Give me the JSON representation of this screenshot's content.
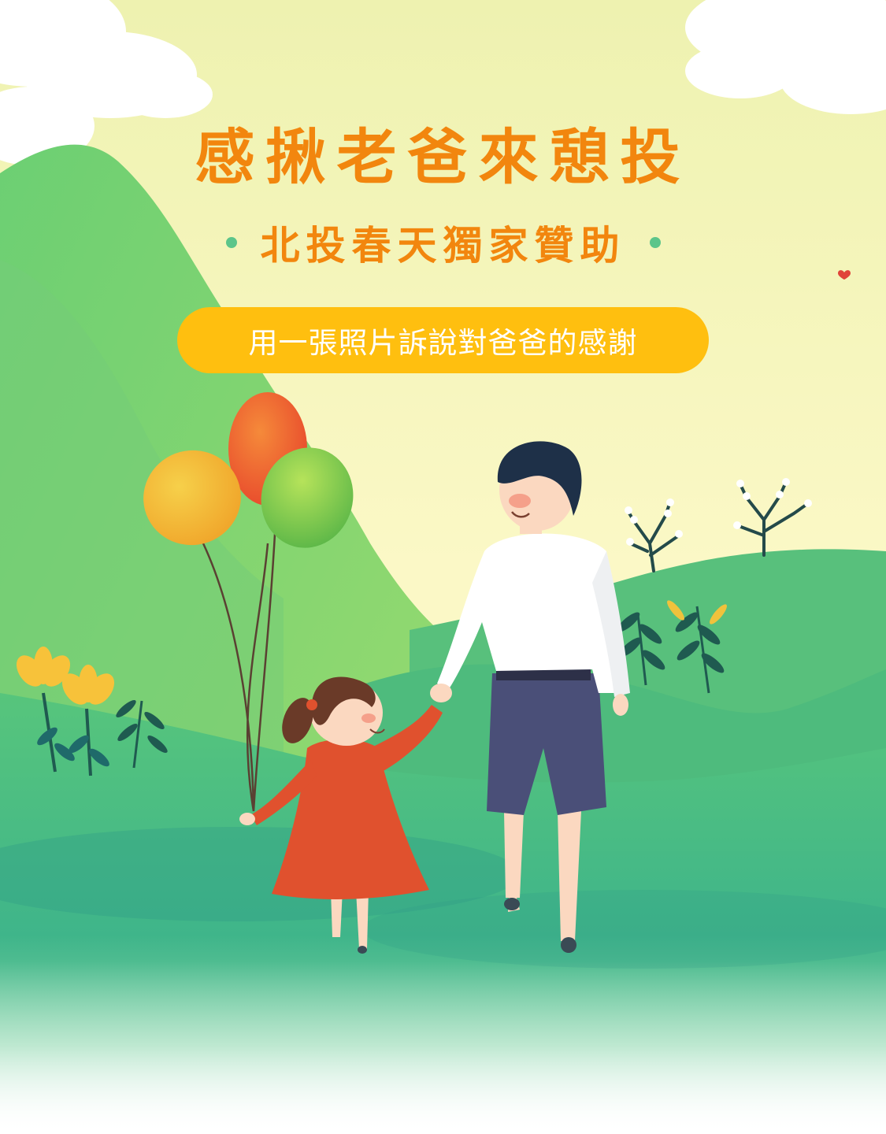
{
  "poster": {
    "title": "感揪老爸來憩投",
    "subtitle": "北投春天獨家贊助",
    "tagline": "用一張照片訴說對爸爸的感謝"
  },
  "colors": {
    "title_orange": "#f2860e",
    "pill_yellow": "#ffbf0f",
    "dot_green": "#5cc58a",
    "sky": "#fbf7c2",
    "hill_green": "#4cbf7c"
  }
}
